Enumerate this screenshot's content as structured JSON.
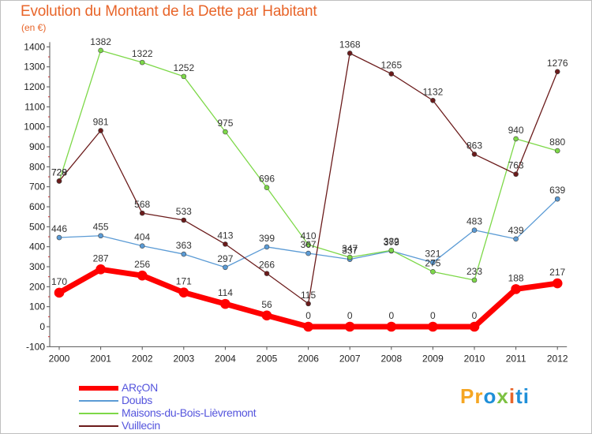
{
  "title": "Evolution du Montant de la Dette par Habitant",
  "unit": "(en €)",
  "chart_data": {
    "type": "line",
    "title": "Evolution du Montant de la Dette par Habitant",
    "ylabel": "(en €)",
    "xlabel": "",
    "ylim": [
      -100,
      1400
    ],
    "yticks": [
      -100,
      0,
      100,
      200,
      300,
      400,
      500,
      600,
      700,
      800,
      900,
      1000,
      1100,
      1200,
      1300,
      1400
    ],
    "categories": [
      "2000",
      "2001",
      "2002",
      "2003",
      "2004",
      "2005",
      "2006",
      "2007",
      "2008",
      "2009",
      "2010",
      "2011",
      "2012"
    ],
    "grid": false,
    "legend": "bottom-left",
    "series": [
      {
        "name": "ARçON",
        "color": "#ff0000",
        "values": [
          170,
          287,
          256,
          171,
          114,
          56,
          0,
          0,
          0,
          0,
          0,
          188,
          217
        ]
      },
      {
        "name": "Doubs",
        "color": "#5b9bd5",
        "values": [
          446,
          455,
          404,
          363,
          297,
          399,
          367,
          337,
          379,
          321,
          483,
          439,
          639
        ]
      },
      {
        "name": "Maisons-du-Bois-Lièvremont",
        "color": "#7dd848",
        "values": [
          728,
          1382,
          1322,
          1252,
          975,
          696,
          410,
          347,
          382,
          275,
          233,
          940,
          880
        ]
      },
      {
        "name": "Vuillecin",
        "color": "#6b1b1b",
        "values": [
          729,
          981,
          568,
          533,
          413,
          266,
          115,
          1368,
          1265,
          1132,
          863,
          763,
          1276
        ]
      }
    ]
  },
  "logo": {
    "p1": "Pr",
    "p2": "o",
    "p3": "x",
    "p4": "i",
    "p5": "ti"
  }
}
